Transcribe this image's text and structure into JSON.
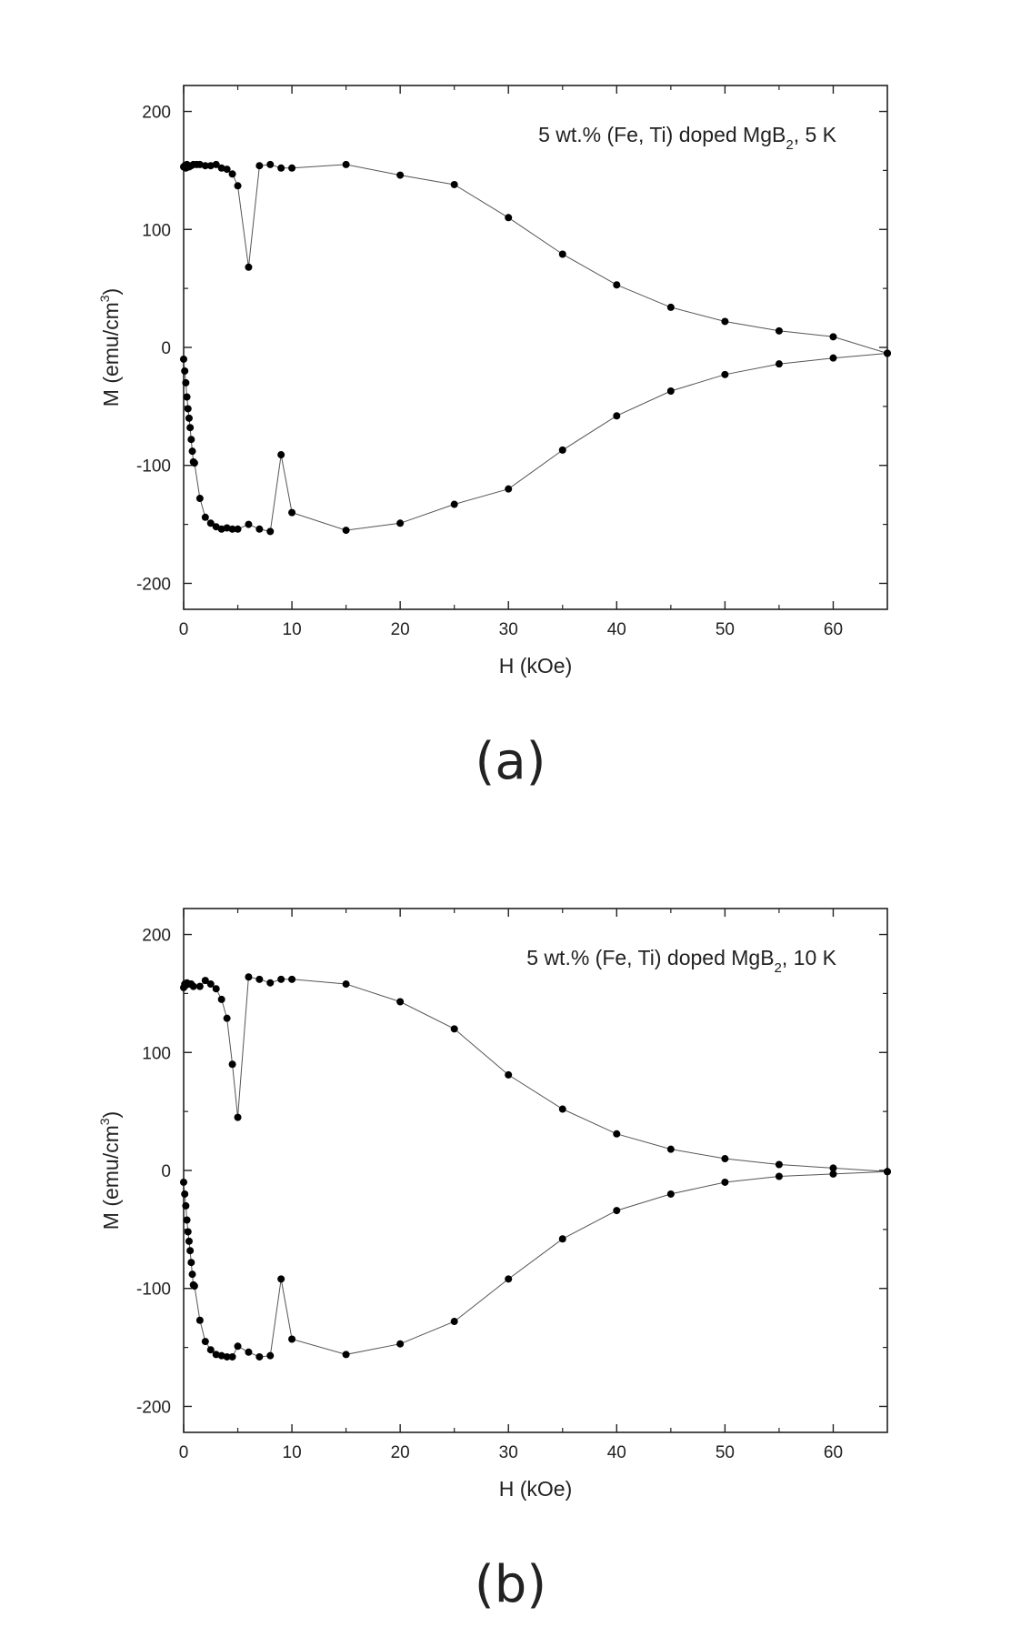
{
  "chart_data": [
    {
      "type": "scatter",
      "panel_label": "(a)",
      "annotation": {
        "text": "5 wt.% (Fe, Ti) doped MgB",
        "sub": "2",
        "tail": ", 5 K"
      },
      "xlabel": "H (kOe)",
      "ylabel": {
        "text": "M (emu/cm",
        "sup": "3",
        "tail": ")"
      },
      "xlim": [
        0,
        65
      ],
      "ylim": [
        -222,
        222
      ],
      "xticks": [
        0,
        10,
        20,
        30,
        40,
        50,
        60
      ],
      "yticks": [
        -200,
        -100,
        0,
        100,
        200
      ],
      "grid": false,
      "series": [
        {
          "points": [
            [
              0,
              153
            ],
            [
              0.1,
              154
            ],
            [
              0.2,
              152
            ],
            [
              0.3,
              155
            ],
            [
              0.5,
              153
            ],
            [
              0.7,
              154
            ],
            [
              0.9,
              155
            ],
            [
              1.2,
              155
            ],
            [
              1.5,
              155
            ],
            [
              2,
              154
            ],
            [
              2.5,
              154
            ],
            [
              3,
              155
            ],
            [
              3.5,
              152
            ],
            [
              4,
              151
            ],
            [
              4.5,
              147
            ],
            [
              5,
              137
            ],
            [
              6,
              68
            ],
            [
              7,
              154
            ],
            [
              8,
              155
            ],
            [
              9,
              152
            ],
            [
              10,
              152
            ],
            [
              15,
              155
            ],
            [
              20,
              146
            ],
            [
              25,
              138
            ],
            [
              30,
              110
            ],
            [
              35,
              79
            ],
            [
              40,
              53
            ],
            [
              45,
              34
            ],
            [
              50,
              22
            ],
            [
              55,
              14
            ],
            [
              60,
              9
            ],
            [
              65,
              -5
            ]
          ]
        },
        {
          "points": [
            [
              0,
              -10
            ],
            [
              0.1,
              -20
            ],
            [
              0.2,
              -30
            ],
            [
              0.3,
              -42
            ],
            [
              0.4,
              -52
            ],
            [
              0.5,
              -60
            ],
            [
              0.6,
              -68
            ],
            [
              0.7,
              -78
            ],
            [
              0.8,
              -88
            ],
            [
              0.9,
              -97
            ],
            [
              1,
              -98
            ],
            [
              1.5,
              -128
            ],
            [
              2,
              -144
            ],
            [
              2.5,
              -149
            ],
            [
              3,
              -152
            ],
            [
              3.5,
              -154
            ],
            [
              4,
              -153
            ],
            [
              4.5,
              -154
            ],
            [
              5,
              -154
            ],
            [
              6,
              -150
            ],
            [
              7,
              -154
            ],
            [
              8,
              -156
            ],
            [
              9,
              -91
            ],
            [
              10,
              -140
            ],
            [
              15,
              -155
            ],
            [
              20,
              -149
            ],
            [
              25,
              -133
            ],
            [
              30,
              -120
            ],
            [
              35,
              -87
            ],
            [
              40,
              -58
            ],
            [
              45,
              -37
            ],
            [
              50,
              -23
            ],
            [
              55,
              -14
            ],
            [
              60,
              -9
            ],
            [
              65,
              -5
            ]
          ]
        }
      ]
    },
    {
      "type": "scatter",
      "panel_label": "(b)",
      "annotation": {
        "text": "5 wt.% (Fe, Ti) doped MgB",
        "sub": "2",
        "tail": ", 10 K"
      },
      "xlabel": "H (kOe)",
      "ylabel": {
        "text": "M (emu/cm",
        "sup": "3",
        "tail": ")"
      },
      "xlim": [
        0,
        65
      ],
      "ylim": [
        -222,
        222
      ],
      "xticks": [
        0,
        10,
        20,
        30,
        40,
        50,
        60
      ],
      "yticks": [
        -200,
        -100,
        0,
        100,
        200
      ],
      "grid": false,
      "series": [
        {
          "points": [
            [
              0,
              155
            ],
            [
              0.1,
              158
            ],
            [
              0.2,
              157
            ],
            [
              0.3,
              159
            ],
            [
              0.5,
              158
            ],
            [
              0.7,
              158
            ],
            [
              0.9,
              156
            ],
            [
              1.5,
              156
            ],
            [
              2,
              161
            ],
            [
              2.5,
              158
            ],
            [
              3,
              154
            ],
            [
              3.5,
              145
            ],
            [
              4,
              129
            ],
            [
              4.5,
              90
            ],
            [
              5,
              45
            ],
            [
              6,
              164
            ],
            [
              7,
              162
            ],
            [
              8,
              159
            ],
            [
              9,
              162
            ],
            [
              10,
              162
            ],
            [
              15,
              158
            ],
            [
              20,
              143
            ],
            [
              25,
              120
            ],
            [
              30,
              81
            ],
            [
              35,
              52
            ],
            [
              40,
              31
            ],
            [
              45,
              18
            ],
            [
              50,
              10
            ],
            [
              55,
              5
            ],
            [
              60,
              2
            ],
            [
              65,
              -1
            ]
          ]
        },
        {
          "points": [
            [
              0,
              -10
            ],
            [
              0.1,
              -20
            ],
            [
              0.2,
              -30
            ],
            [
              0.3,
              -42
            ],
            [
              0.4,
              -52
            ],
            [
              0.5,
              -60
            ],
            [
              0.6,
              -68
            ],
            [
              0.7,
              -78
            ],
            [
              0.8,
              -88
            ],
            [
              0.9,
              -97
            ],
            [
              1,
              -98
            ],
            [
              1.5,
              -127
            ],
            [
              2,
              -145
            ],
            [
              2.5,
              -152
            ],
            [
              3,
              -156
            ],
            [
              3.5,
              -157
            ],
            [
              4,
              -158
            ],
            [
              4.5,
              -158
            ],
            [
              5,
              -149
            ],
            [
              6,
              -154
            ],
            [
              7,
              -158
            ],
            [
              8,
              -157
            ],
            [
              9,
              -92
            ],
            [
              10,
              -143
            ],
            [
              15,
              -156
            ],
            [
              20,
              -147
            ],
            [
              25,
              -128
            ],
            [
              30,
              -92
            ],
            [
              35,
              -58
            ],
            [
              40,
              -34
            ],
            [
              45,
              -20
            ],
            [
              50,
              -10
            ],
            [
              55,
              -5
            ],
            [
              60,
              -3
            ],
            [
              65,
              -1
            ]
          ]
        }
      ]
    }
  ]
}
